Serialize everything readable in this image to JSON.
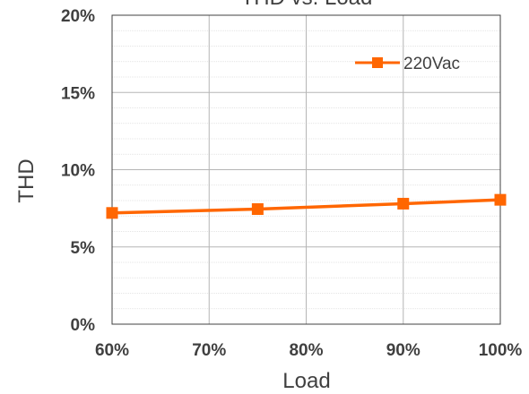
{
  "chart_data": {
    "type": "line",
    "title": "THD vs. Load",
    "xlabel": "Load",
    "ylabel": "THD",
    "x_tick_labels": [
      "60%",
      "70%",
      "80%",
      "90%",
      "100%"
    ],
    "y_tick_labels": [
      "0%",
      "5%",
      "10%",
      "15%",
      "20%"
    ],
    "xlim": [
      60,
      100
    ],
    "ylim": [
      0,
      20
    ],
    "x_unit": "%",
    "y_unit": "%",
    "grid": true,
    "legend_position": "top-right",
    "series": [
      {
        "name": "220Vac",
        "color": "#ff6600",
        "marker": "square",
        "x": [
          60,
          75,
          90,
          100
        ],
        "y": [
          7.2,
          7.45,
          7.8,
          8.05
        ]
      }
    ]
  }
}
